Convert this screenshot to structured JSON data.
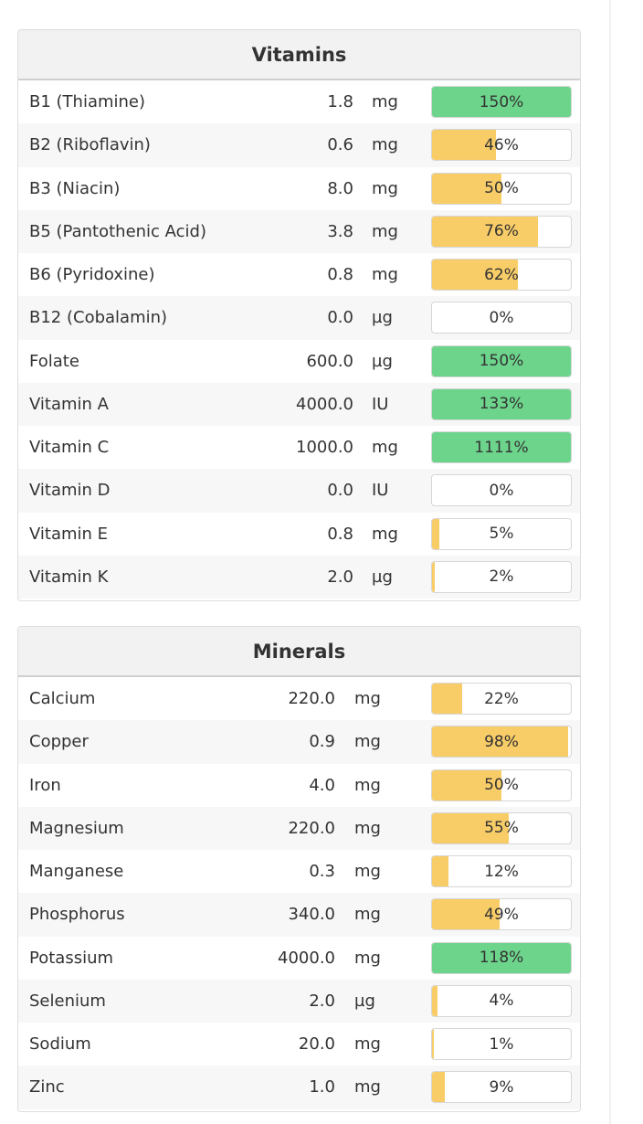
{
  "colors": {
    "bar_partial": "#f8cd68",
    "bar_full": "#6dd48c",
    "header_bg": "#f2f2f2"
  },
  "vitamins": {
    "title": "Vitamins",
    "rows": [
      {
        "name": "B1 (Thiamine)",
        "amount": "1.8",
        "unit": "mg",
        "percent_label": "150%",
        "percent": 150
      },
      {
        "name": "B2 (Riboflavin)",
        "amount": "0.6",
        "unit": "mg",
        "percent_label": "46%",
        "percent": 46
      },
      {
        "name": "B3 (Niacin)",
        "amount": "8.0",
        "unit": "mg",
        "percent_label": "50%",
        "percent": 50
      },
      {
        "name": "B5 (Pantothenic Acid)",
        "amount": "3.8",
        "unit": "mg",
        "percent_label": "76%",
        "percent": 76
      },
      {
        "name": "B6 (Pyridoxine)",
        "amount": "0.8",
        "unit": "mg",
        "percent_label": "62%",
        "percent": 62
      },
      {
        "name": "B12 (Cobalamin)",
        "amount": "0.0",
        "unit": "µg",
        "percent_label": "0%",
        "percent": 0
      },
      {
        "name": "Folate",
        "amount": "600.0",
        "unit": "µg",
        "percent_label": "150%",
        "percent": 150
      },
      {
        "name": "Vitamin A",
        "amount": "4000.0",
        "unit": "IU",
        "percent_label": "133%",
        "percent": 133
      },
      {
        "name": "Vitamin C",
        "amount": "1000.0",
        "unit": "mg",
        "percent_label": "1111%",
        "percent": 1111
      },
      {
        "name": "Vitamin D",
        "amount": "0.0",
        "unit": "IU",
        "percent_label": "0%",
        "percent": 0
      },
      {
        "name": "Vitamin E",
        "amount": "0.8",
        "unit": "mg",
        "percent_label": "5%",
        "percent": 5
      },
      {
        "name": "Vitamin K",
        "amount": "2.0",
        "unit": "µg",
        "percent_label": "2%",
        "percent": 2
      }
    ]
  },
  "minerals": {
    "title": "Minerals",
    "rows": [
      {
        "name": "Calcium",
        "amount": "220.0",
        "unit": "mg",
        "percent_label": "22%",
        "percent": 22
      },
      {
        "name": "Copper",
        "amount": "0.9",
        "unit": "mg",
        "percent_label": "98%",
        "percent": 98
      },
      {
        "name": "Iron",
        "amount": "4.0",
        "unit": "mg",
        "percent_label": "50%",
        "percent": 50
      },
      {
        "name": "Magnesium",
        "amount": "220.0",
        "unit": "mg",
        "percent_label": "55%",
        "percent": 55
      },
      {
        "name": "Manganese",
        "amount": "0.3",
        "unit": "mg",
        "percent_label": "12%",
        "percent": 12
      },
      {
        "name": "Phosphorus",
        "amount": "340.0",
        "unit": "mg",
        "percent_label": "49%",
        "percent": 49
      },
      {
        "name": "Potassium",
        "amount": "4000.0",
        "unit": "mg",
        "percent_label": "118%",
        "percent": 118
      },
      {
        "name": "Selenium",
        "amount": "2.0",
        "unit": "µg",
        "percent_label": "4%",
        "percent": 4
      },
      {
        "name": "Sodium",
        "amount": "20.0",
        "unit": "mg",
        "percent_label": "1%",
        "percent": 1
      },
      {
        "name": "Zinc",
        "amount": "1.0",
        "unit": "mg",
        "percent_label": "9%",
        "percent": 9
      }
    ]
  }
}
